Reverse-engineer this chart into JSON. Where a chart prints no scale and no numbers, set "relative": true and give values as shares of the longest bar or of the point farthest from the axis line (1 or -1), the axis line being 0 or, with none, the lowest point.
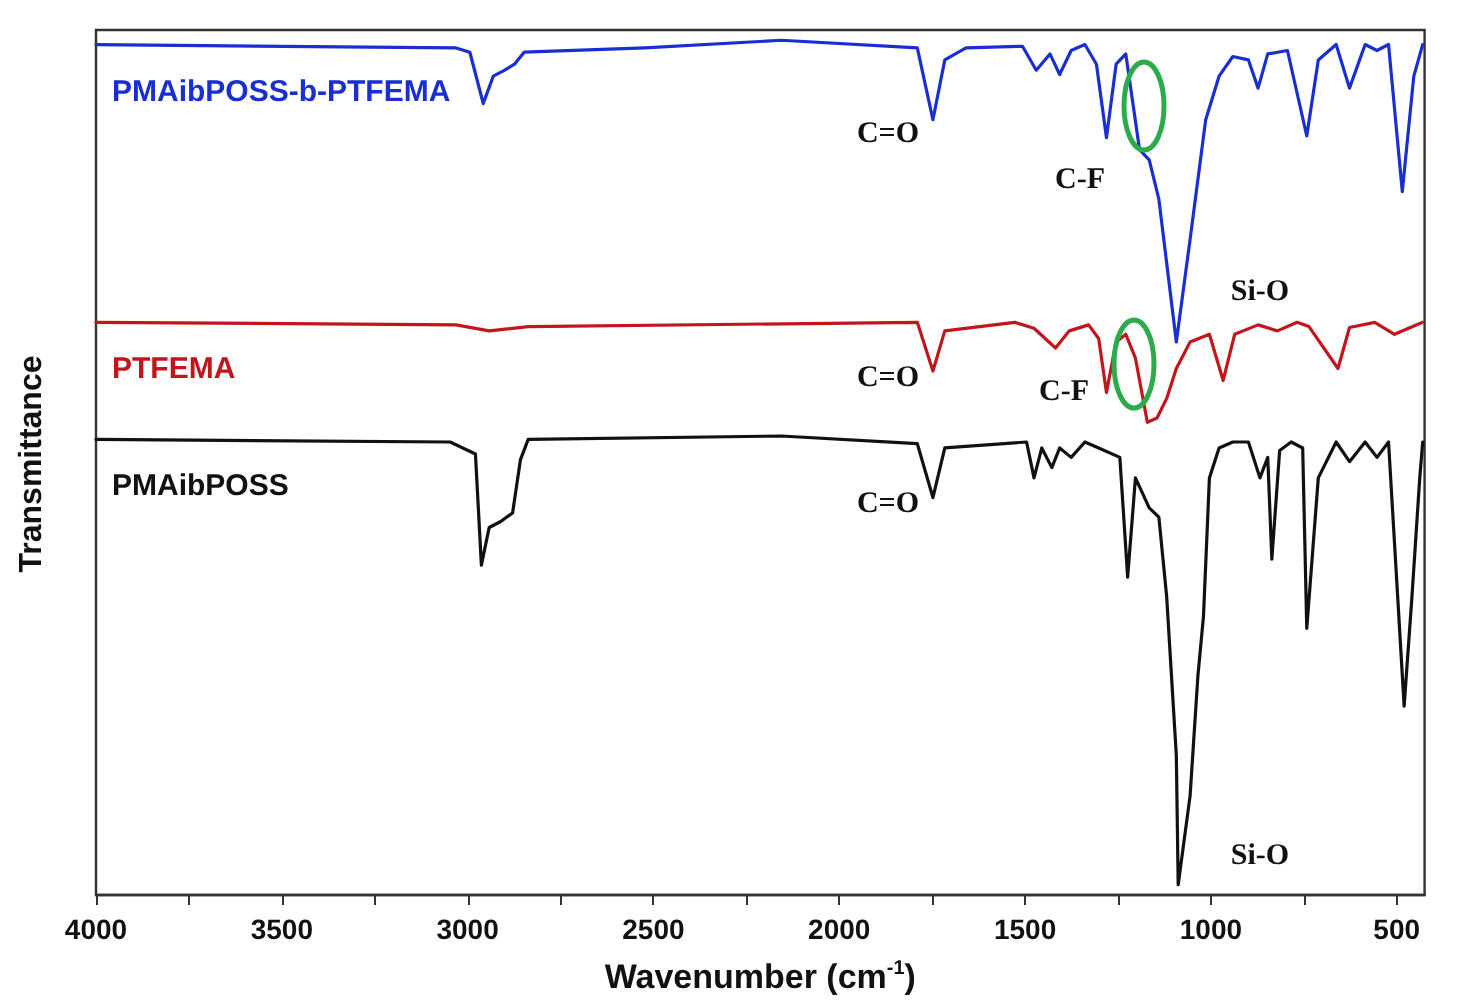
{
  "chart_data": {
    "type": "line",
    "relative": true,
    "xlabel": "Wavenumber (cm$^{-1}$)",
    "ylabel": "Transmittance",
    "xlim": [
      4000,
      425
    ],
    "xticks": [
      4000,
      {
        "value": 3750,
        "label": null
      },
      3500,
      {
        "value": 3250,
        "label": null
      },
      3000,
      {
        "value": 2750,
        "label": null
      },
      2500,
      {
        "value": 2250,
        "label": null
      },
      2000,
      {
        "value": 1750,
        "label": null
      },
      1500,
      {
        "value": 1250,
        "label": null
      },
      1000,
      {
        "value": 750,
        "label": null
      },
      500
    ],
    "grid": false,
    "legend": false,
    "marker": "none",
    "line_style": "solid",
    "series": [
      {
        "name": "PMAibPOSS-b-PTFEMA",
        "color": "#1a2fd0",
        "x": [
          4000,
          3031,
          2994,
          2958,
          2931,
          2900,
          2874,
          2848,
          2523,
          2156,
          1790,
          1748,
          1716,
          1659,
          1507,
          1470,
          1433,
          1407,
          1376,
          1339,
          1308,
          1281,
          1255,
          1229,
          1192,
          1166,
          1140,
          1093,
          1056,
          1014,
          978,
          941,
          899,
          873,
          847,
          794,
          742,
          711,
          663,
          627,
          585,
          553,
          522,
          485,
          454,
          430
        ],
        "values": [
          0.995,
          0.991,
          0.986,
          0.926,
          0.958,
          0.965,
          0.972,
          0.986,
          0.991,
          1,
          0.991,
          0.907,
          0.977,
          0.991,
          0.993,
          0.965,
          0.984,
          0.96,
          0.988,
          0.995,
          0.972,
          0.886,
          0.972,
          0.984,
          0.872,
          0.86,
          0.814,
          0.647,
          0.767,
          0.907,
          0.958,
          0.981,
          0.977,
          0.944,
          0.984,
          0.988,
          0.888,
          0.977,
          0.995,
          0.944,
          0.995,
          0.988,
          0.995,
          0.823,
          0.958,
          0.995
        ]
      },
      {
        "name": "PTFEMA",
        "color": "#c0161c",
        "x": [
          4000,
          3031,
          2942,
          2837,
          1790,
          1748,
          1716,
          1528,
          1476,
          1418,
          1381,
          1329,
          1302,
          1281,
          1255,
          1229,
          1203,
          1171,
          1145,
          1119,
          1093,
          1056,
          1004,
          967,
          936,
          873,
          821,
          768,
          736,
          658,
          627,
          559,
          506,
          430
        ],
        "values": [
          0.67,
          0.667,
          0.66,
          0.665,
          0.67,
          0.613,
          0.66,
          0.67,
          0.663,
          0.64,
          0.66,
          0.667,
          0.651,
          0.588,
          0.647,
          0.656,
          0.628,
          0.553,
          0.558,
          0.581,
          0.616,
          0.647,
          0.656,
          0.602,
          0.656,
          0.667,
          0.66,
          0.67,
          0.665,
          0.616,
          0.664,
          0.67,
          0.656,
          0.67
        ]
      },
      {
        "name": "PMAibPOSS",
        "color": "#111111",
        "x": [
          4000,
          3047,
          2979,
          2963,
          2942,
          2911,
          2879,
          2858,
          2837,
          2156,
          1790,
          1748,
          1716,
          1496,
          1476,
          1455,
          1428,
          1407,
          1376,
          1339,
          1302,
          1245,
          1224,
          1203,
          1166,
          1140,
          1119,
          1093,
          1088,
          1056,
          1035,
          1020,
          1004,
          978,
          941,
          899,
          868,
          847,
          836,
          815,
          784,
          753,
          742,
          711,
          663,
          627,
          585,
          553,
          522,
          480,
          459,
          438,
          430
        ],
        "values": [
          0.533,
          0.53,
          0.516,
          0.386,
          0.43,
          0.437,
          0.447,
          0.509,
          0.533,
          0.537,
          0.528,
          0.465,
          0.523,
          0.53,
          0.488,
          0.523,
          0.5,
          0.523,
          0.512,
          0.53,
          0.523,
          0.512,
          0.372,
          0.488,
          0.453,
          0.442,
          0.349,
          0.163,
          0.012,
          0.116,
          0.256,
          0.326,
          0.488,
          0.523,
          0.53,
          0.53,
          0.488,
          0.512,
          0.393,
          0.52,
          0.53,
          0.523,
          0.312,
          0.488,
          0.53,
          0.507,
          0.53,
          0.512,
          0.53,
          0.221,
          0.349,
          0.488,
          0.53
        ]
      }
    ],
    "annotations": [
      "C=O",
      "C-F",
      "Si-O",
      "C=O",
      "C-F",
      "C=O",
      "Si-O"
    ]
  }
}
